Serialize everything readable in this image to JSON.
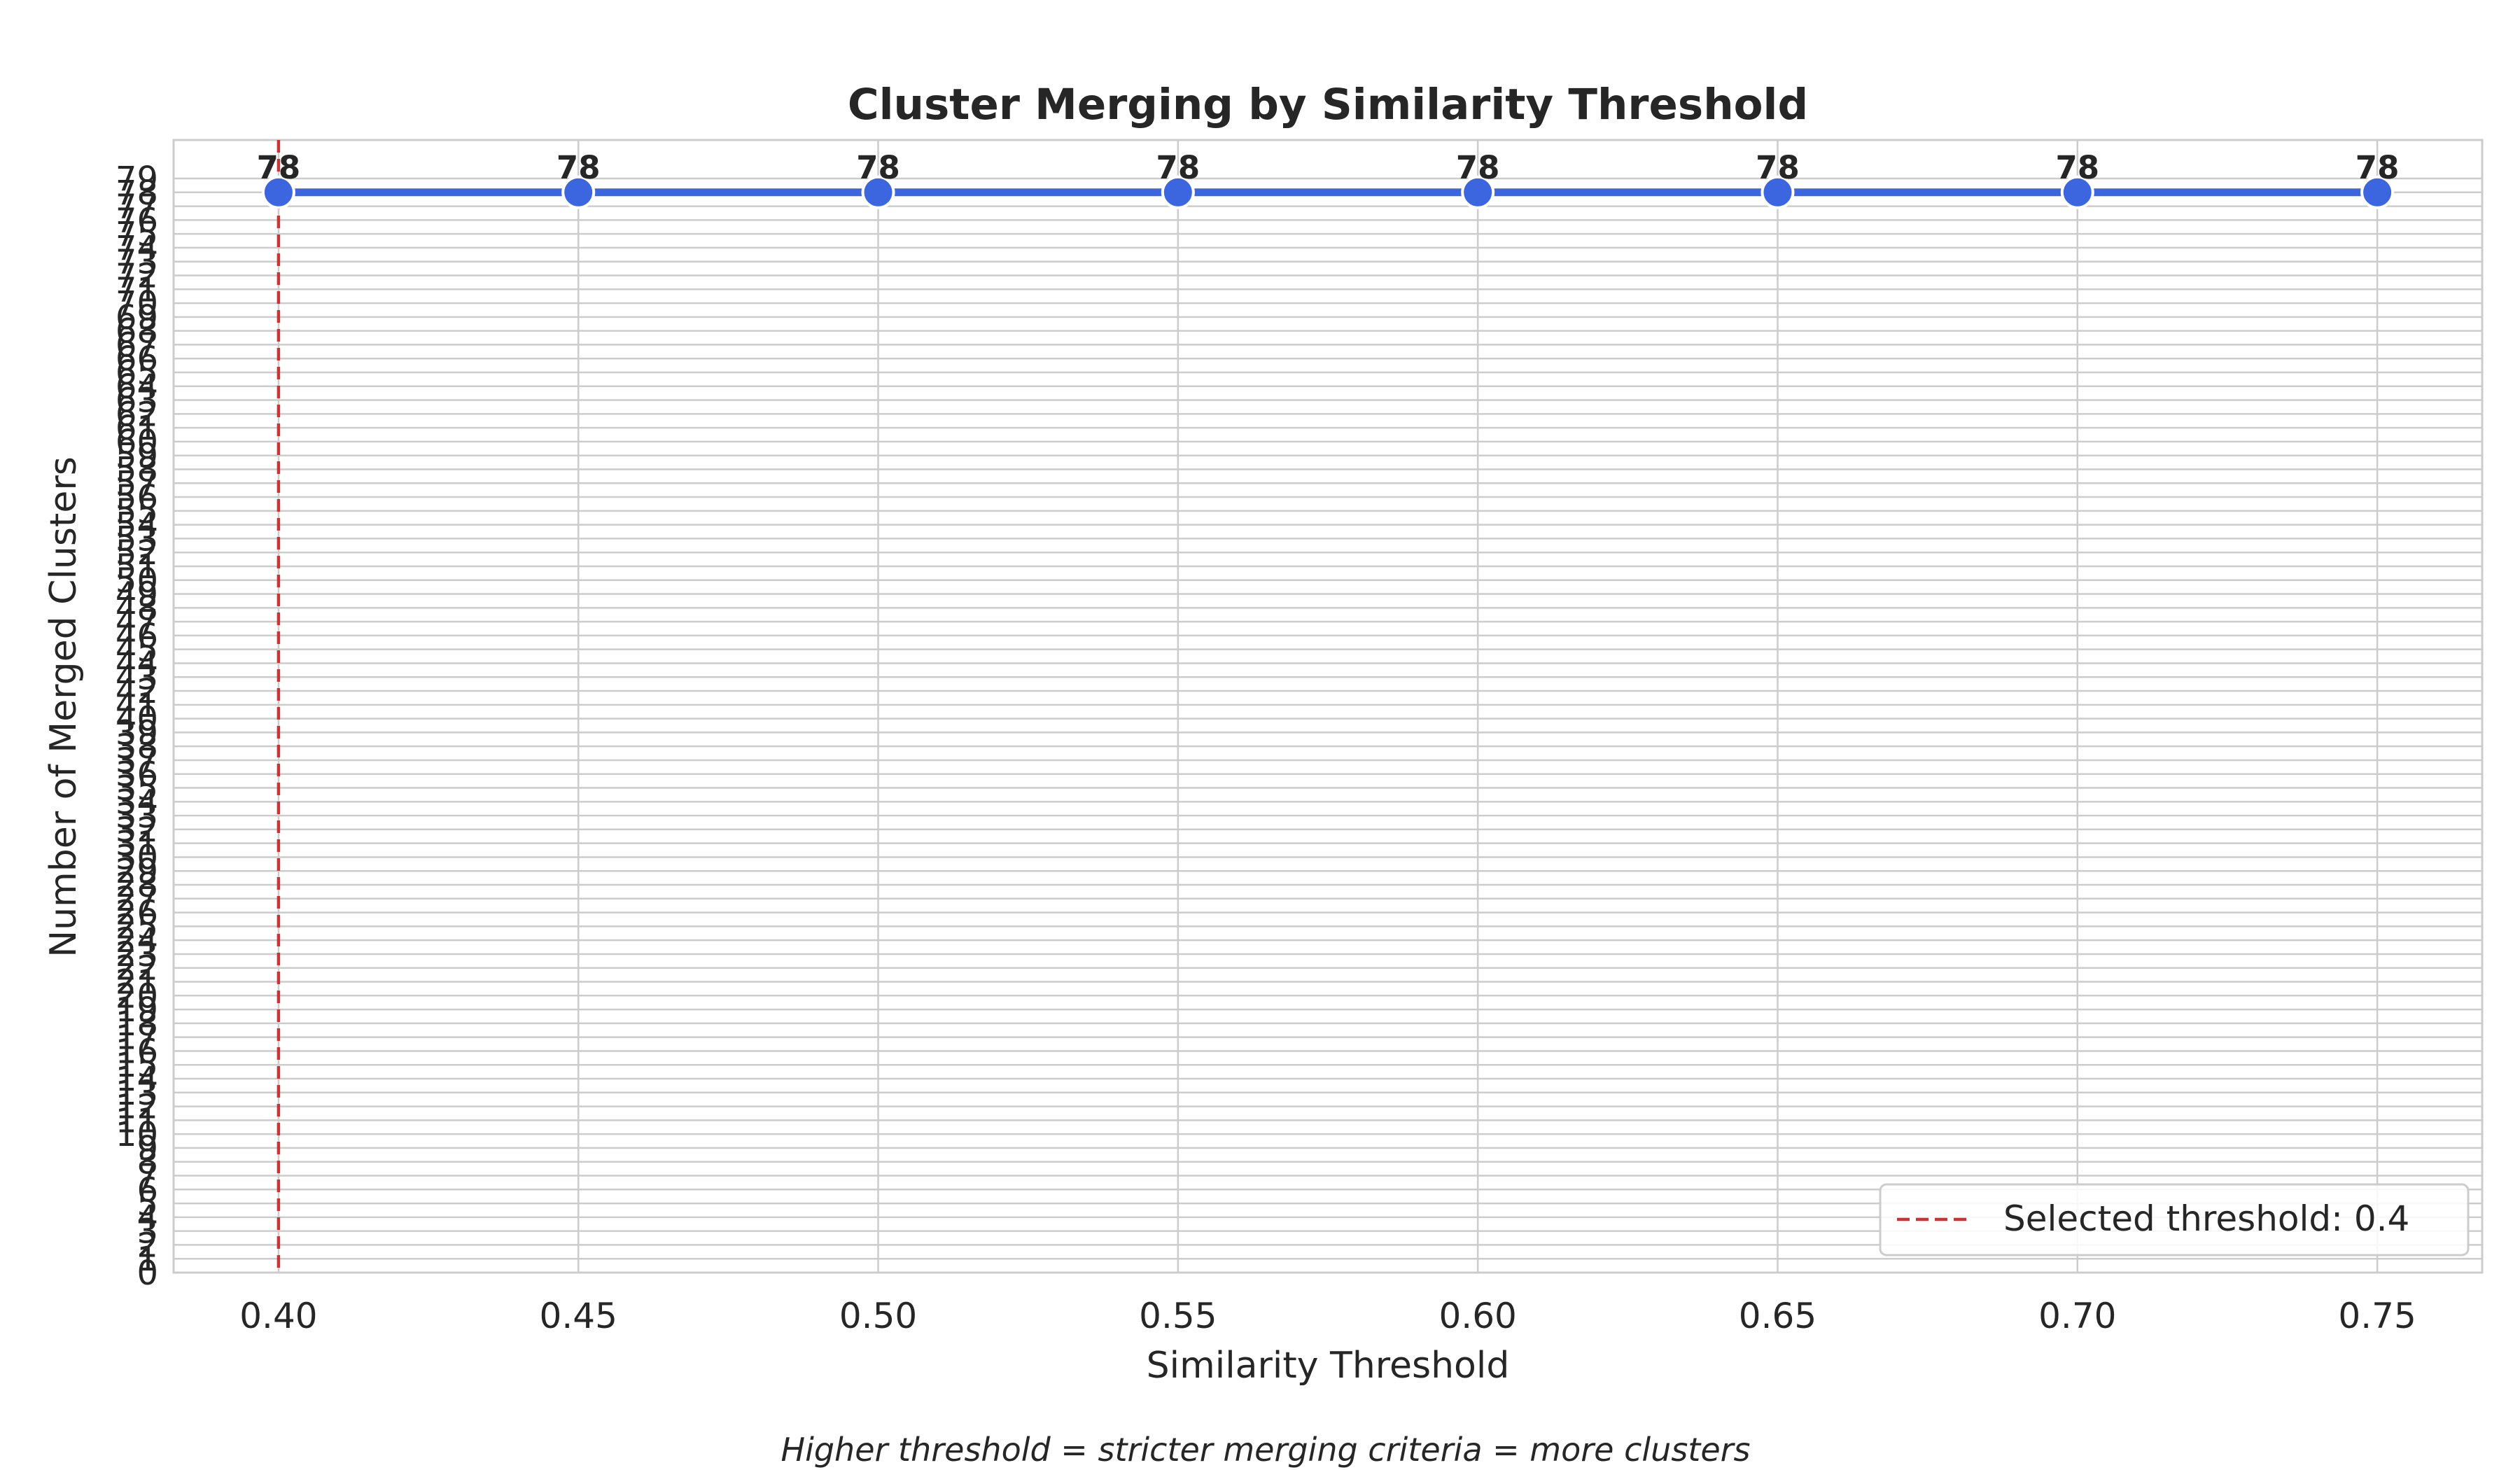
{
  "chart_data": {
    "type": "line",
    "title": "Cluster Merging by Similarity Threshold",
    "xlabel": "Similarity Threshold",
    "ylabel": "Number of Merged Clusters",
    "caption": "Higher threshold = stricter merging criteria = more clusters",
    "x": [
      0.4,
      0.45,
      0.5,
      0.55,
      0.6,
      0.65,
      0.7,
      0.75
    ],
    "xtick_labels": [
      "0.40",
      "0.45",
      "0.50",
      "0.55",
      "0.60",
      "0.65",
      "0.70",
      "0.75"
    ],
    "series": [
      {
        "values": [
          78,
          78,
          78,
          78,
          78,
          78,
          78,
          78
        ],
        "color": "#3b66e0",
        "data_labels": [
          "78",
          "78",
          "78",
          "78",
          "78",
          "78",
          "78",
          "78"
        ]
      }
    ],
    "xlim": [
      0.3825,
      0.7675
    ],
    "ylim": [
      0,
      79
    ],
    "yticks_integer_step": 1,
    "threshold_line": {
      "x": 0.4,
      "label": "Selected threshold: 0.4",
      "color": "#cc3333"
    },
    "grid": true,
    "legend_position": "lower-right"
  }
}
